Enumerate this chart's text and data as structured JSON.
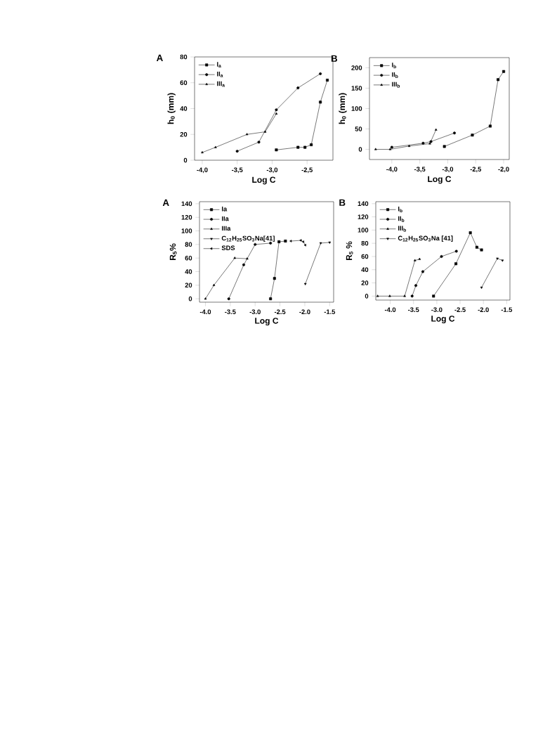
{
  "chart_data": [
    {
      "type": "line",
      "title": "A",
      "xlabel": "Log C",
      "ylabel": "h$_{0}$ (mm)",
      "xlim": [
        -4.11,
        -2.13
      ],
      "ylim": [
        0,
        80
      ],
      "xticks": [
        {
          "value": -4.0,
          "label": "-4,0"
        },
        {
          "value": -3.5,
          "label": "-3,5"
        },
        {
          "value": -3.0,
          "label": "-3,0"
        },
        {
          "value": -2.5,
          "label": "-2,5"
        }
      ],
      "yticks": [
        0,
        20,
        40,
        60,
        80
      ],
      "legend": "top left",
      "grid": false,
      "series": [
        {
          "name": "I$_{a}$",
          "color": "#000000",
          "marker": "square",
          "x": [
            -2.94,
            -2.63,
            -2.53,
            -2.44,
            -2.31,
            -2.21
          ],
          "values": [
            8,
            10,
            10,
            12,
            45,
            62
          ]
        },
        {
          "name": "II$_{a}$",
          "color": "#000000",
          "marker": "circle",
          "x": [
            -3.5,
            -3.19,
            -2.94,
            -2.63,
            -2.31
          ],
          "values": [
            7,
            14,
            39,
            56,
            67
          ]
        },
        {
          "name": "III$_{a}$",
          "color": "#000000",
          "marker": "triangle",
          "x": [
            -4.0,
            -3.81,
            -3.36,
            -3.1,
            -2.94
          ],
          "values": [
            6,
            10,
            20,
            22,
            36
          ]
        }
      ]
    },
    {
      "type": "line",
      "title": "B",
      "xlabel": "Log C",
      "ylabel": "h$_{0}$ (mm)",
      "xlim": [
        -4.4,
        -1.9
      ],
      "ylim": [
        -25,
        225
      ],
      "xticks": [
        {
          "value": -4.0,
          "label": "-4,0"
        },
        {
          "value": -3.5,
          "label": "-3,5"
        },
        {
          "value": -3.0,
          "label": "-3,0"
        },
        {
          "value": -2.5,
          "label": "-2,5"
        },
        {
          "value": -2.0,
          "label": "-2,0"
        }
      ],
      "yticks": [
        0,
        50,
        100,
        150,
        200
      ],
      "legend": "top left",
      "grid": false,
      "series": [
        {
          "name": "I$_{b}$",
          "color": "#000000",
          "marker": "square",
          "x": [
            -3.06,
            -2.56,
            -2.24,
            -2.1,
            -2.0
          ],
          "values": [
            7,
            35,
            57,
            171,
            191
          ]
        },
        {
          "name": "II$_{b}$",
          "color": "#000000",
          "marker": "circle",
          "x": [
            -4.0,
            -3.44,
            -3.3,
            -2.88
          ],
          "values": [
            5,
            15,
            19,
            40
          ]
        },
        {
          "name": "III$_{b}$",
          "color": "#000000",
          "marker": "triangle",
          "x": [
            -4.29,
            -4.03,
            -3.69,
            -3.32,
            -3.21
          ],
          "values": [
            0,
            0,
            8,
            14,
            48
          ]
        }
      ]
    },
    {
      "type": "line",
      "title": "A",
      "xlabel": "Log C",
      "ylabel": "R$_{5}$%",
      "xlim": [
        -4.12,
        -1.42
      ],
      "ylim": [
        -5,
        143
      ],
      "xticks": [
        {
          "value": -4.0,
          "label": "-4.0"
        },
        {
          "value": -3.5,
          "label": "-3.5"
        },
        {
          "value": -3.0,
          "label": "-3.0"
        },
        {
          "value": -2.5,
          "label": "-2.5"
        },
        {
          "value": -2.0,
          "label": "-2.0"
        },
        {
          "value": -1.5,
          "label": "-1.5"
        }
      ],
      "yticks": [
        0,
        20,
        40,
        60,
        80,
        100,
        120,
        140
      ],
      "legend": "top left",
      "grid": false,
      "series": [
        {
          "name": "Ia",
          "color": "#000000",
          "marker": "square",
          "x": [
            -2.69,
            -2.61,
            -2.52,
            -2.39
          ],
          "values": [
            0,
            30,
            84,
            85
          ]
        },
        {
          "name": "IIa",
          "color": "#000000",
          "marker": "circle",
          "x": [
            -3.53,
            -3.23,
            -3.0,
            -2.69
          ],
          "values": [
            0,
            50,
            80,
            82
          ]
        },
        {
          "name": "IIIa",
          "color": "#000000",
          "marker": "triangle",
          "x": [
            -4.0,
            -3.83,
            -3.41,
            -3.16
          ],
          "values": [
            0,
            20,
            60,
            59
          ]
        },
        {
          "name": "C$_{12}$H$_{25}$SO$_{3}$Na[41]",
          "color": "#000000",
          "marker": "triangle-down",
          "x": [
            -1.99,
            -1.68,
            -1.5
          ],
          "values": [
            22,
            82,
            83
          ]
        },
        {
          "name": "SDS",
          "color": "#000000",
          "marker": "triangle-left",
          "x": [
            -2.28,
            -2.08,
            -2.03,
            -1.99
          ],
          "values": [
            85,
            86,
            84,
            79
          ]
        }
      ]
    },
    {
      "type": "line",
      "title": "B",
      "xlabel": "Log C",
      "ylabel": "R$_{5}$ %",
      "xlim": [
        -4.31,
        -1.43
      ],
      "ylim": [
        -6,
        143
      ],
      "xticks": [
        {
          "value": -4.0,
          "label": "-4.0"
        },
        {
          "value": -3.5,
          "label": "-3.5"
        },
        {
          "value": -3.0,
          "label": "-3.0"
        },
        {
          "value": -2.5,
          "label": "-2.5"
        },
        {
          "value": -2.0,
          "label": "-2.0"
        },
        {
          "value": -1.5,
          "label": "-1.5"
        }
      ],
      "yticks": [
        0,
        20,
        40,
        60,
        80,
        100,
        120,
        140
      ],
      "legend": "top left",
      "grid": false,
      "series": [
        {
          "name": "I$_{b}$",
          "color": "#000000",
          "marker": "square",
          "x": [
            -3.07,
            -2.59,
            -2.28,
            -2.14,
            -2.04
          ],
          "values": [
            0,
            49,
            96,
            74,
            70
          ]
        },
        {
          "name": "II$_{b}$",
          "color": "#000000",
          "marker": "circle",
          "x": [
            -3.53,
            -3.45,
            -3.3,
            -2.9,
            -2.58
          ],
          "values": [
            0,
            16,
            37,
            60,
            68
          ]
        },
        {
          "name": "III$_{b}$",
          "color": "#000000",
          "marker": "triangle",
          "x": [
            -4.27,
            -4.01,
            -3.69,
            -3.47,
            -3.37
          ],
          "values": [
            0,
            0,
            0,
            54,
            56
          ]
        },
        {
          "name": "C$_{12}$H$_{25}$SO$_{3}$Na [41]",
          "color": "#000000",
          "marker": "triangle-down",
          "x": [
            -2.04,
            -1.7,
            -1.59
          ],
          "values": [
            13,
            57,
            54
          ]
        }
      ]
    }
  ]
}
